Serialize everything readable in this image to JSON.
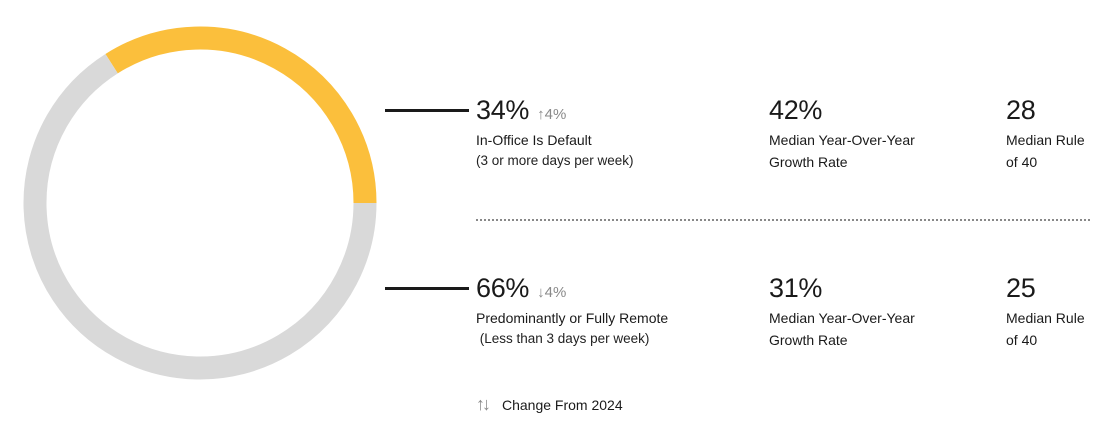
{
  "chart_data": {
    "type": "pie",
    "variant": "donut",
    "slices": [
      {
        "label": "In-Office Is Default",
        "value": 34,
        "color": "#FBBF3C"
      },
      {
        "label": "Predominantly or Fully Remote",
        "value": 66,
        "color": "#D9D9D9"
      }
    ]
  },
  "rows": [
    {
      "pct": "34%",
      "change_icon": "arrow-up-icon",
      "change_glyph": "↑",
      "change": "4%",
      "label": "In-Office Is Default",
      "sub": "(3 or more days per week)",
      "growth_value": "42%",
      "growth_label1": "Median Year-Over-Year",
      "growth_label2": "Growth Rate",
      "rule_value": "28",
      "rule_label1": "Median Rule",
      "rule_label2": "of 40"
    },
    {
      "pct": "66%",
      "change_icon": "arrow-down-icon",
      "change_glyph": "↓",
      "change": "4%",
      "label": "Predominantly or Fully Remote",
      "sub": " (Less than 3 days per week)",
      "growth_value": "31%",
      "growth_label1": "Median Year-Over-Year",
      "growth_label2": "Growth Rate",
      "rule_value": "25",
      "rule_label1": "Median Rule",
      "rule_label2": "of 40"
    }
  ],
  "legend": {
    "icon": "up-down-arrows-icon",
    "glyph": "↑↓",
    "label": "Change From 2024"
  }
}
